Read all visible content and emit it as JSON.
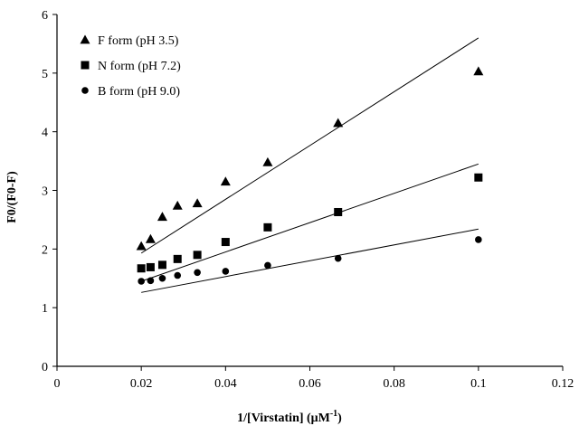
{
  "chart_data": {
    "type": "scatter",
    "title": "",
    "xlabel": "1/[Virstatin] (μM",
    "xlabel_superscript": "-1",
    "xlabel_suffix": ")",
    "ylabel": "F0/(F0-F)",
    "xlim": [
      0,
      0.12
    ],
    "ylim": [
      0,
      6
    ],
    "xticks": [
      0,
      0.02,
      0.04,
      0.06,
      0.08,
      0.1,
      0.12
    ],
    "xtick_labels": [
      "0",
      "0.02",
      "0.04",
      "0.06",
      "0.08",
      "0.1",
      "0.12"
    ],
    "yticks": [
      0,
      1,
      2,
      3,
      4,
      5,
      6
    ],
    "ytick_labels": [
      "0",
      "1",
      "2",
      "3",
      "4",
      "5",
      "6"
    ],
    "grid": false,
    "legend_position": "top-left",
    "series": [
      {
        "name": "F form (pH 3.5)",
        "marker": "triangle",
        "x": [
          0.02,
          0.0222,
          0.025,
          0.0286,
          0.0333,
          0.04,
          0.05,
          0.0667,
          0.1
        ],
        "y": [
          2.05,
          2.17,
          2.55,
          2.74,
          2.78,
          3.15,
          3.48,
          4.15,
          5.03
        ],
        "fit_line": {
          "x": [
            0.02,
            0.1
          ],
          "y": [
            1.93,
            5.6
          ]
        }
      },
      {
        "name": "N form (pH 7.2)",
        "marker": "square",
        "x": [
          0.02,
          0.0222,
          0.025,
          0.0286,
          0.0333,
          0.04,
          0.05,
          0.0667,
          0.1
        ],
        "y": [
          1.67,
          1.69,
          1.73,
          1.83,
          1.9,
          2.12,
          2.37,
          2.63,
          3.22
        ],
        "fit_line": {
          "x": [
            0.02,
            0.1
          ],
          "y": [
            1.45,
            3.45
          ]
        }
      },
      {
        "name": "B form (pH 9.0)",
        "marker": "circle",
        "x": [
          0.02,
          0.0222,
          0.025,
          0.0286,
          0.0333,
          0.04,
          0.05,
          0.0667,
          0.1
        ],
        "y": [
          1.45,
          1.46,
          1.5,
          1.55,
          1.6,
          1.62,
          1.72,
          1.84,
          2.16
        ],
        "fit_line": {
          "x": [
            0.02,
            0.1
          ],
          "y": [
            1.26,
            2.34
          ]
        }
      }
    ]
  }
}
